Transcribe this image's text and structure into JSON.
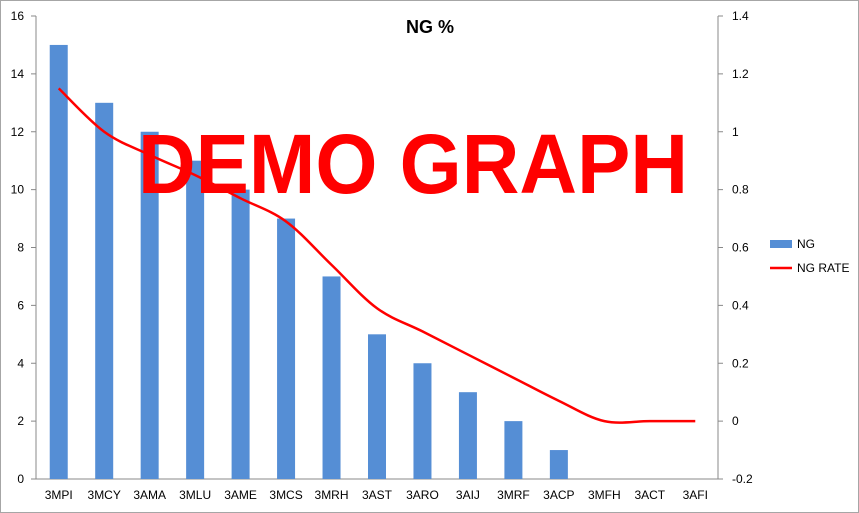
{
  "chart_data": {
    "type": "bar",
    "title": "NG %",
    "categories": [
      "3MPI",
      "3MCY",
      "3AMA",
      "3MLU",
      "3AME",
      "3MCS",
      "3MRH",
      "3AST",
      "3ARO",
      "3AIJ",
      "3MRF",
      "3ACP",
      "3MFH",
      "3ACT",
      "3AFI"
    ],
    "series": [
      {
        "name": "NG",
        "type": "bar",
        "axis": "left",
        "color": "#558ed5",
        "values": [
          15,
          13,
          12,
          11,
          10,
          9,
          7,
          5,
          4,
          3,
          2,
          1,
          0,
          0,
          0
        ]
      },
      {
        "name": "NG RATE",
        "type": "line",
        "axis": "right",
        "color": "#ff0000",
        "values": [
          1.15,
          1.0,
          0.92,
          0.85,
          0.77,
          0.69,
          0.54,
          0.39,
          0.31,
          0.23,
          0.15,
          0.07,
          0.0,
          0.0,
          0.0
        ]
      }
    ],
    "y_left": {
      "min": 0,
      "max": 16,
      "ticks": [
        "0",
        "2",
        "4",
        "6",
        "8",
        "10",
        "12",
        "14",
        "16"
      ]
    },
    "y_right": {
      "min": -0.2,
      "max": 1.4,
      "ticks": [
        "-0.2",
        "0",
        "0.2",
        "0.4",
        "0.6",
        "0.8",
        "1",
        "1.2",
        "1.4"
      ]
    },
    "grid": false,
    "legend_position": "right",
    "watermark": "DEMO GRAPH"
  }
}
